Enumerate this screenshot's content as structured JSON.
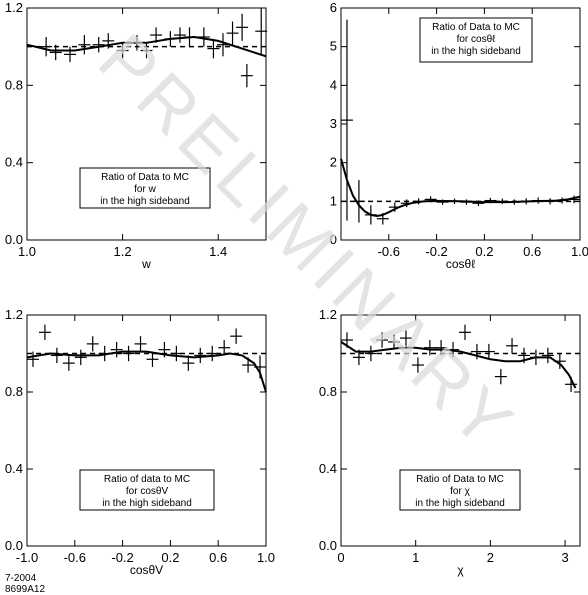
{
  "watermark": "PRELIMINARY",
  "footer": {
    "line1": "7-2004",
    "line2": "8699A12"
  },
  "chart_data": [
    {
      "type": "scatter",
      "xlabel": "w",
      "xlim": [
        1.0,
        1.5
      ],
      "ylim": [
        0.0,
        1.2
      ],
      "xticks": [
        "1.0",
        "1.2",
        "1.4"
      ],
      "yticks": [
        "0.0",
        "0.4",
        "0.8",
        "1.2"
      ],
      "annotation": [
        "Ratio of Data to MC",
        "for w",
        "in the high sideband"
      ],
      "points": [
        {
          "x": 1.04,
          "y": 1.0,
          "ey": 0.05
        },
        {
          "x": 1.06,
          "y": 0.97,
          "ey": 0.04
        },
        {
          "x": 1.09,
          "y": 0.96,
          "ey": 0.04
        },
        {
          "x": 1.12,
          "y": 1.01,
          "ey": 0.05
        },
        {
          "x": 1.15,
          "y": 1.01,
          "ey": 0.04
        },
        {
          "x": 1.17,
          "y": 1.03,
          "ey": 0.04
        },
        {
          "x": 1.2,
          "y": 0.98,
          "ey": 0.04
        },
        {
          "x": 1.23,
          "y": 1.02,
          "ey": 0.04
        },
        {
          "x": 1.25,
          "y": 0.98,
          "ey": 0.04
        },
        {
          "x": 1.27,
          "y": 1.06,
          "ey": 0.04
        },
        {
          "x": 1.3,
          "y": 1.04,
          "ey": 0.04
        },
        {
          "x": 1.32,
          "y": 1.06,
          "ey": 0.04
        },
        {
          "x": 1.34,
          "y": 1.05,
          "ey": 0.05
        },
        {
          "x": 1.37,
          "y": 1.05,
          "ey": 0.05
        },
        {
          "x": 1.39,
          "y": 0.99,
          "ey": 0.05
        },
        {
          "x": 1.41,
          "y": 1.01,
          "ey": 0.06
        },
        {
          "x": 1.43,
          "y": 1.07,
          "ey": 0.06
        },
        {
          "x": 1.45,
          "y": 1.1,
          "ey": 0.07
        },
        {
          "x": 1.46,
          "y": 0.85,
          "ey": 0.06
        },
        {
          "x": 1.49,
          "y": 1.08,
          "ey": 0.12
        }
      ],
      "fit": [
        [
          1.0,
          1.01
        ],
        [
          1.05,
          0.98
        ],
        [
          1.1,
          0.98
        ],
        [
          1.15,
          1.0
        ],
        [
          1.2,
          1.02
        ],
        [
          1.25,
          1.02
        ],
        [
          1.3,
          1.04
        ],
        [
          1.35,
          1.05
        ],
        [
          1.4,
          1.03
        ],
        [
          1.45,
          0.99
        ],
        [
          1.5,
          0.95
        ]
      ],
      "reference": 1.0
    },
    {
      "type": "scatter",
      "xlabel": "cosθℓ",
      "xlim": [
        -1.0,
        1.0
      ],
      "ylim": [
        0,
        6
      ],
      "xticks": [
        "-0.6",
        "-0.2",
        "0.2",
        "0.6",
        "1.0"
      ],
      "xtick_values": [
        -0.6,
        -0.2,
        0.2,
        0.6,
        1.0
      ],
      "yticks": [
        "0",
        "1",
        "2",
        "3",
        "4",
        "5",
        "6"
      ],
      "annotation": [
        "Ratio of Data to MC",
        "for cosθℓ",
        "in the high sideband"
      ],
      "points": [
        {
          "x": -0.95,
          "y": 3.1,
          "ey": 2.6
        },
        {
          "x": -0.85,
          "y": 1.0,
          "ey": 0.55
        },
        {
          "x": -0.75,
          "y": 0.65,
          "ey": 0.25
        },
        {
          "x": -0.65,
          "y": 0.55,
          "ey": 0.15
        },
        {
          "x": -0.55,
          "y": 0.85,
          "ey": 0.12
        },
        {
          "x": -0.45,
          "y": 0.95,
          "ey": 0.1
        },
        {
          "x": -0.35,
          "y": 1.0,
          "ey": 0.08
        },
        {
          "x": -0.25,
          "y": 1.05,
          "ey": 0.08
        },
        {
          "x": -0.15,
          "y": 0.98,
          "ey": 0.07
        },
        {
          "x": -0.05,
          "y": 1.0,
          "ey": 0.07
        },
        {
          "x": 0.05,
          "y": 0.98,
          "ey": 0.07
        },
        {
          "x": 0.15,
          "y": 0.95,
          "ey": 0.07
        },
        {
          "x": 0.25,
          "y": 1.02,
          "ey": 0.07
        },
        {
          "x": 0.35,
          "y": 1.0,
          "ey": 0.07
        },
        {
          "x": 0.45,
          "y": 0.98,
          "ey": 0.07
        },
        {
          "x": 0.55,
          "y": 1.0,
          "ey": 0.08
        },
        {
          "x": 0.65,
          "y": 1.02,
          "ey": 0.08
        },
        {
          "x": 0.75,
          "y": 1.0,
          "ey": 0.08
        },
        {
          "x": 0.85,
          "y": 1.02,
          "ey": 0.08
        },
        {
          "x": 0.95,
          "y": 1.05,
          "ey": 0.1
        }
      ],
      "fit": [
        [
          -1.0,
          2.1
        ],
        [
          -0.95,
          1.55
        ],
        [
          -0.9,
          1.15
        ],
        [
          -0.85,
          0.9
        ],
        [
          -0.8,
          0.74
        ],
        [
          -0.75,
          0.65
        ],
        [
          -0.7,
          0.62
        ],
        [
          -0.65,
          0.65
        ],
        [
          -0.6,
          0.72
        ],
        [
          -0.55,
          0.8
        ],
        [
          -0.5,
          0.87
        ],
        [
          -0.45,
          0.92
        ],
        [
          -0.4,
          0.96
        ],
        [
          -0.3,
          1.0
        ],
        [
          -0.2,
          1.01
        ],
        [
          0.0,
          1.0
        ],
        [
          0.2,
          0.98
        ],
        [
          0.4,
          0.98
        ],
        [
          0.6,
          1.0
        ],
        [
          0.8,
          1.02
        ],
        [
          0.9,
          1.05
        ],
        [
          1.0,
          1.12
        ]
      ],
      "reference": 1.0
    },
    {
      "type": "scatter",
      "xlabel": "cosθV",
      "xlim": [
        -1.0,
        1.0
      ],
      "ylim": [
        0.0,
        1.2
      ],
      "xticks": [
        "-1.0",
        "-0.6",
        "-0.2",
        "0.2",
        "0.6",
        "1.0"
      ],
      "yticks": [
        "0.0",
        "0.4",
        "0.8",
        "1.2"
      ],
      "annotation": [
        "Ratio of data to MC",
        "for cosθV",
        "in the high sideband"
      ],
      "points": [
        {
          "x": -0.95,
          "y": 0.97,
          "ey": 0.04
        },
        {
          "x": -0.85,
          "y": 1.11,
          "ey": 0.04
        },
        {
          "x": -0.75,
          "y": 0.99,
          "ey": 0.04
        },
        {
          "x": -0.65,
          "y": 0.95,
          "ey": 0.04
        },
        {
          "x": -0.55,
          "y": 0.98,
          "ey": 0.04
        },
        {
          "x": -0.45,
          "y": 1.05,
          "ey": 0.04
        },
        {
          "x": -0.35,
          "y": 1.0,
          "ey": 0.04
        },
        {
          "x": -0.25,
          "y": 1.02,
          "ey": 0.04
        },
        {
          "x": -0.15,
          "y": 1.0,
          "ey": 0.04
        },
        {
          "x": -0.05,
          "y": 1.05,
          "ey": 0.04
        },
        {
          "x": 0.05,
          "y": 0.97,
          "ey": 0.04
        },
        {
          "x": 0.15,
          "y": 1.02,
          "ey": 0.04
        },
        {
          "x": 0.25,
          "y": 1.0,
          "ey": 0.04
        },
        {
          "x": 0.35,
          "y": 0.95,
          "ey": 0.04
        },
        {
          "x": 0.45,
          "y": 0.99,
          "ey": 0.04
        },
        {
          "x": 0.55,
          "y": 1.0,
          "ey": 0.04
        },
        {
          "x": 0.65,
          "y": 1.03,
          "ey": 0.04
        },
        {
          "x": 0.75,
          "y": 1.09,
          "ey": 0.04
        },
        {
          "x": 0.85,
          "y": 0.94,
          "ey": 0.04
        },
        {
          "x": 0.95,
          "y": 0.93,
          "ey": 0.06
        }
      ],
      "fit": [
        [
          -1.0,
          0.98
        ],
        [
          -0.8,
          1.0
        ],
        [
          -0.6,
          0.99
        ],
        [
          -0.4,
          0.99
        ],
        [
          -0.2,
          1.01
        ],
        [
          0.0,
          1.01
        ],
        [
          0.2,
          0.99
        ],
        [
          0.4,
          0.98
        ],
        [
          0.6,
          0.99
        ],
        [
          0.7,
          1.0
        ],
        [
          0.8,
          0.99
        ],
        [
          0.9,
          0.95
        ],
        [
          0.95,
          0.9
        ],
        [
          1.0,
          0.8
        ]
      ],
      "reference": 1.0
    },
    {
      "type": "scatter",
      "xlabel": "χ",
      "xlim": [
        0.0,
        3.2
      ],
      "ylim": [
        0.0,
        1.2
      ],
      "xticks": [
        "0",
        "1",
        "2",
        "3"
      ],
      "xtick_values": [
        0,
        1,
        2,
        3
      ],
      "yticks": [
        "0.0",
        "0.4",
        "0.8",
        "1.2"
      ],
      "annotation": [
        "Ratio of Data to MC",
        "for χ",
        "in the high sideband"
      ],
      "points": [
        {
          "x": 0.08,
          "y": 1.07,
          "ey": 0.04
        },
        {
          "x": 0.24,
          "y": 0.98,
          "ey": 0.04
        },
        {
          "x": 0.4,
          "y": 1.0,
          "ey": 0.04
        },
        {
          "x": 0.55,
          "y": 1.07,
          "ey": 0.04
        },
        {
          "x": 0.71,
          "y": 1.06,
          "ey": 0.04
        },
        {
          "x": 0.87,
          "y": 1.08,
          "ey": 0.04
        },
        {
          "x": 1.03,
          "y": 0.94,
          "ey": 0.04
        },
        {
          "x": 1.19,
          "y": 1.03,
          "ey": 0.04
        },
        {
          "x": 1.34,
          "y": 1.03,
          "ey": 0.04
        },
        {
          "x": 1.5,
          "y": 1.02,
          "ey": 0.04
        },
        {
          "x": 1.66,
          "y": 1.11,
          "ey": 0.04
        },
        {
          "x": 1.82,
          "y": 1.01,
          "ey": 0.04
        },
        {
          "x": 1.98,
          "y": 1.01,
          "ey": 0.04
        },
        {
          "x": 2.14,
          "y": 0.88,
          "ey": 0.04
        },
        {
          "x": 2.29,
          "y": 1.04,
          "ey": 0.04
        },
        {
          "x": 2.45,
          "y": 0.99,
          "ey": 0.04
        },
        {
          "x": 2.61,
          "y": 0.98,
          "ey": 0.04
        },
        {
          "x": 2.77,
          "y": 0.99,
          "ey": 0.04
        },
        {
          "x": 2.93,
          "y": 0.96,
          "ey": 0.04
        },
        {
          "x": 3.08,
          "y": 0.84,
          "ey": 0.04
        }
      ],
      "fit": [
        [
          0.0,
          1.06
        ],
        [
          0.2,
          1.01
        ],
        [
          0.4,
          1.01
        ],
        [
          0.6,
          1.02
        ],
        [
          0.8,
          1.03
        ],
        [
          1.0,
          1.03
        ],
        [
          1.2,
          1.02
        ],
        [
          1.4,
          1.02
        ],
        [
          1.6,
          1.01
        ],
        [
          1.8,
          0.99
        ],
        [
          2.0,
          0.97
        ],
        [
          2.2,
          0.96
        ],
        [
          2.4,
          0.96
        ],
        [
          2.6,
          0.98
        ],
        [
          2.8,
          0.98
        ],
        [
          2.95,
          0.94
        ],
        [
          3.05,
          0.89
        ],
        [
          3.14,
          0.82
        ]
      ],
      "reference": 1.0
    }
  ]
}
